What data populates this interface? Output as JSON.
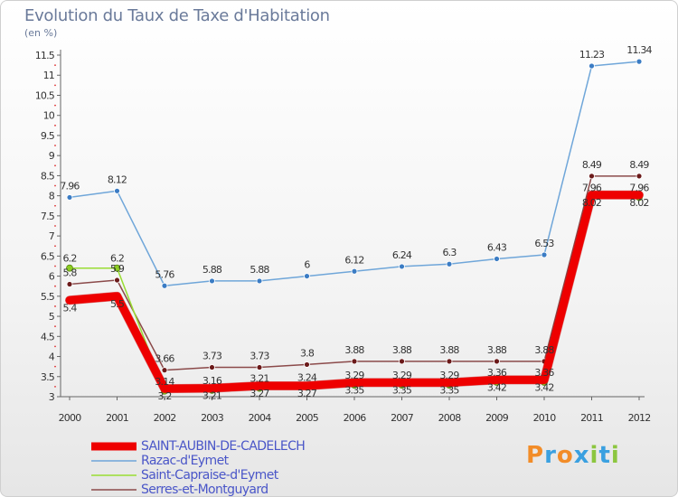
{
  "header": {
    "title": "Evolution du Taux de Taxe d'Habitation",
    "subtitle": "(en %)"
  },
  "logo": {
    "text": "Proxiti",
    "colors": [
      "#f28c28",
      "#3aa0e0",
      "#f28c28",
      "#3aa0e0",
      "#8cc63f",
      "#3aa0e0",
      "#8cc63f"
    ]
  },
  "chart_data": {
    "type": "line",
    "title": "Evolution du Taux de Taxe d'Habitation",
    "subtitle": "(en %)",
    "x": [
      "2000",
      "2001",
      "2002",
      "2003",
      "2004",
      "2005",
      "2006",
      "2007",
      "2008",
      "2009",
      "2010",
      "2011",
      "2012"
    ],
    "ylim": [
      3,
      11.5
    ],
    "yticks": [
      "3",
      "3.5",
      "4",
      "4.5",
      "5",
      "5.5",
      "6",
      "6.5",
      "7",
      "7.5",
      "8",
      "8.5",
      "9",
      "9.5",
      "10",
      "10.5",
      "11",
      "11.5"
    ],
    "grid": false,
    "legend": "bottom-left",
    "series": [
      {
        "name": "SAINT-AUBIN-DE-CADELECH",
        "color": "#ee0000",
        "width": 9,
        "marker": "#ee0000",
        "values": [
          5.4,
          5.5,
          3.2,
          3.21,
          3.27,
          3.27,
          3.35,
          3.35,
          3.35,
          3.42,
          3.42,
          8.02,
          8.02
        ],
        "labels": [
          "5.4",
          "5.5",
          "3.2",
          "3.21",
          "3.27",
          "3.27",
          "3.35",
          "3.35",
          "3.35",
          "3.42",
          "3.42",
          "8.02",
          "8.02"
        ]
      },
      {
        "name": "Razac-d'Eymet",
        "color": "#6fa6d9",
        "width": 1.5,
        "marker": "#3b7cc4",
        "values": [
          7.96,
          8.12,
          5.76,
          5.88,
          5.88,
          6.0,
          6.12,
          6.24,
          6.3,
          6.43,
          6.53,
          11.23,
          11.34
        ],
        "labels": [
          "7.96",
          "8.12",
          "5.76",
          "5.88",
          "5.88",
          "6",
          "6.12",
          "6.24",
          "6.3",
          "6.43",
          "6.53",
          "11.23",
          "11.34"
        ]
      },
      {
        "name": "Saint-Capraise-d'Eymet",
        "color": "#99dd33",
        "width": 1.5,
        "marker": "#8ccc22",
        "values": [
          6.2,
          6.2,
          3.14,
          3.16,
          3.21,
          3.24,
          3.29,
          3.29,
          3.29,
          3.36,
          3.36,
          7.96,
          7.96
        ],
        "labels": [
          "6.2",
          "6.2",
          "3.14",
          "3.16",
          "3.21",
          "3.24",
          "3.29",
          "3.29",
          "3.29",
          "3.36",
          "3.36",
          "7.96",
          "7.96"
        ]
      },
      {
        "name": "Serres-et-Montguyard",
        "color": "#8b4a4a",
        "width": 1.5,
        "marker": "#6b1a1a",
        "values": [
          5.8,
          5.9,
          3.66,
          3.73,
          3.73,
          3.8,
          3.88,
          3.88,
          3.88,
          3.88,
          3.88,
          8.49,
          8.49
        ],
        "labels": [
          "5.8",
          "5.9",
          "3.66",
          "3.73",
          "3.73",
          "3.8",
          "3.88",
          "3.88",
          "3.88",
          "3.88",
          "3.88",
          "8.49",
          "8.49"
        ]
      }
    ]
  }
}
